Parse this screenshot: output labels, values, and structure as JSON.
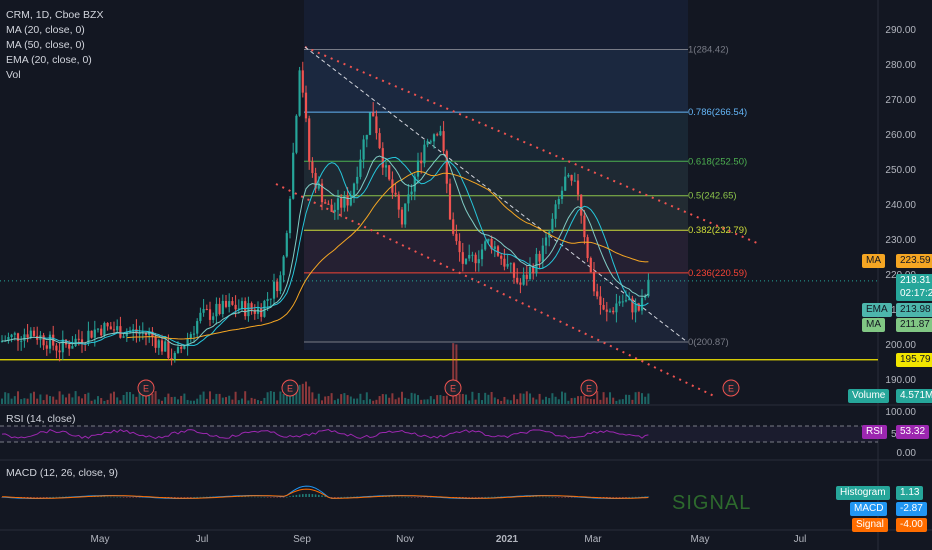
{
  "legend": {
    "symbol": "CRM, 1D, Cboe BZX",
    "ma20": "MA (20, close, 0)",
    "ma50": "MA (50, close, 0)",
    "ema20": "EMA (20, close, 0)",
    "vol": "Vol"
  },
  "rsi_title": "RSI (14, close)",
  "macd_title": "MACD (12, 26, close, 9)",
  "watermark": "SIGNAL",
  "colors": {
    "background": "#131722",
    "up": "#26a69a",
    "down": "#ef5350",
    "ma20": "#26c6da",
    "ma50": "#f5a623",
    "ema": "#4db6ac",
    "rsi": "#9c27b0",
    "macd": "#2196f3",
    "signal": "#ff6d00",
    "support": "#f2e600"
  },
  "chart_data": {
    "type": "candlestick",
    "price_axis": {
      "ticks": [
        "290.00",
        "280.00",
        "270.00",
        "260.00",
        "250.00",
        "240.00",
        "230.00",
        "220.00",
        "210.00",
        "200.00",
        "190.00"
      ],
      "range": [
        186,
        294
      ]
    },
    "rsi_axis": {
      "ticks": [
        "100.00",
        "50.00",
        "0.00"
      ]
    },
    "time_axis": [
      "May",
      "Jul",
      "Sep",
      "Nov",
      "2021",
      "Mar",
      "May",
      "Jul"
    ],
    "fib_levels": [
      {
        "ratio": "1",
        "price": 284.42,
        "label": "1(284.42)",
        "color": "#787b86"
      },
      {
        "ratio": "0.786",
        "price": 266.54,
        "label": "0.786(266.54)",
        "color": "#64b5f6"
      },
      {
        "ratio": "0.618",
        "price": 252.5,
        "label": "0.618(252.50)",
        "color": "#4caf50"
      },
      {
        "ratio": "0.5",
        "price": 242.65,
        "label": "0.5(242.65)",
        "color": "#8bc34a"
      },
      {
        "ratio": "0.382",
        "price": 232.79,
        "label": "0.382(232.79)",
        "color": "#cddc39"
      },
      {
        "ratio": "0.236",
        "price": 220.59,
        "label": "0.236(220.59)",
        "color": "#f44336"
      },
      {
        "ratio": "0",
        "price": 200.87,
        "label": "0(200.87)",
        "color": "#787b86"
      }
    ],
    "support_line": 195.79,
    "price_tags": {
      "ma50": {
        "label": "MA",
        "value": "223.59"
      },
      "last": {
        "value": "218.31",
        "countdown": "02:17:20"
      },
      "ema": {
        "label": "EMA",
        "value": "213.98"
      },
      "ma20": {
        "label": "MA",
        "value": "211.87"
      },
      "support": {
        "value": "195.79"
      },
      "volume": {
        "label": "Volume",
        "value": "4.571M"
      },
      "rsi": {
        "label": "RSI",
        "value": "53.32"
      },
      "histogram": {
        "label": "Histogram",
        "value": "1.13"
      },
      "macd": {
        "label": "MACD",
        "value": "-2.87"
      },
      "signal": {
        "label": "Signal",
        "value": "-4.00"
      }
    },
    "earnings_markers": [
      "E",
      "E",
      "E",
      "E",
      "E"
    ],
    "channel": {
      "upper": [
        [
          284.5,
          "Sep 1"
        ],
        [
          230,
          "Apr 10"
        ]
      ],
      "lower": [
        [
          246,
          "Aug 20"
        ],
        [
          190,
          "May 10"
        ]
      ]
    }
  }
}
